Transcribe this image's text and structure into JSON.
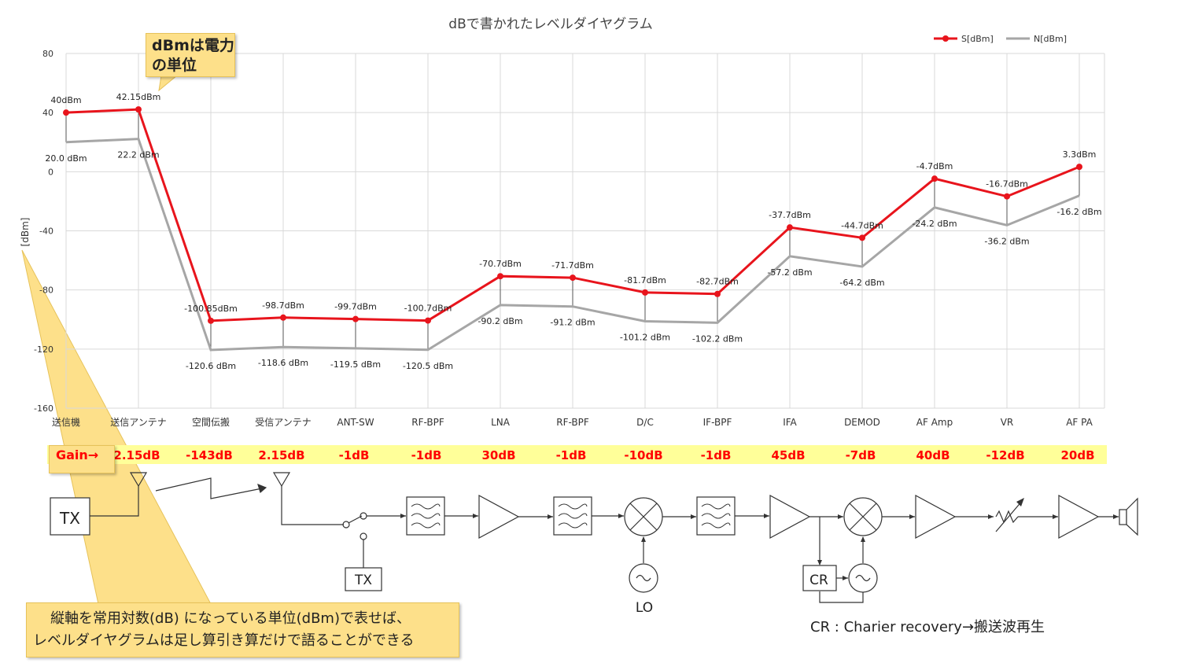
{
  "chart_data": {
    "type": "line",
    "title": "dBで書かれたレベルダイヤグラム",
    "ylabel": "[dBm]",
    "ylim": [
      -160,
      80
    ],
    "yticks": [
      80,
      40,
      0,
      -40,
      -80,
      -120,
      -160
    ],
    "categories": [
      "送信機",
      "送信アンテナ",
      "空間伝搬",
      "受信アンテナ",
      "ANT-SW",
      "RF-BPF",
      "LNA",
      "RF-BPF",
      "D/C",
      "IF-BPF",
      "IFA",
      "DEMOD",
      "AF Amp",
      "VR",
      "AF PA"
    ],
    "legend_position": "top-right",
    "series": [
      {
        "name": "S[dBm]",
        "color": "#e8141c",
        "values": [
          40,
          42.15,
          -100.85,
          -98.7,
          -99.7,
          -100.7,
          -70.7,
          -71.7,
          -81.7,
          -82.7,
          -37.7,
          -44.7,
          -4.7,
          -16.7,
          3.3
        ],
        "labels": [
          "40dBm",
          "42.15dBm",
          "-100.85dBm",
          "-98.7dBm",
          "-99.7dBm",
          "-100.7dBm",
          "-70.7dBm",
          "-71.7dBm",
          "-81.7dBm",
          "-82.7dBm",
          "-37.7dBm",
          "-44.7dBm",
          "-4.7dBm",
          "-16.7dBm",
          "3.3dBm"
        ]
      },
      {
        "name": "N[dBm]",
        "color": "#a6a6a6",
        "values": [
          20.0,
          22.2,
          -120.6,
          -118.6,
          -119.5,
          -120.5,
          -90.2,
          -91.2,
          -101.2,
          -102.2,
          -57.2,
          -64.2,
          -24.2,
          -36.2,
          -16.2
        ],
        "labels": [
          "20.0 dBm",
          "22.2 dBm",
          "-120.6 dBm",
          "-118.6 dBm",
          "-119.5 dBm",
          "-120.5 dBm",
          "-90.2 dBm",
          "-91.2 dBm",
          "-101.2 dBm",
          "-102.2 dBm",
          "-57.2 dBm",
          "-64.2 dBm",
          "-24.2 dBm",
          "-36.2 dBm",
          "-16.2 dBm"
        ]
      }
    ]
  },
  "gain": {
    "label": "Gain→",
    "values": [
      "2.15dB",
      "-143dB",
      "2.15dB",
      "-1dB",
      "-1dB",
      "30dB",
      "-1dB",
      "-10dB",
      "-1dB",
      "45dB",
      "-7dB",
      "40dB",
      "-12dB",
      "20dB"
    ],
    "text_color": "#ff0000",
    "band_color": "#ffff99"
  },
  "callouts": {
    "dbm_note_lines": [
      "dBmは電力",
      "の単位"
    ],
    "bottom_note_lines": [
      "縦軸を常用対数(dB) になっている単位(dBm)で表せば、",
      "レベルダイヤグラムは足し算引き算だけで語ることができる"
    ],
    "color": "#fde08a"
  },
  "block_diagram": {
    "tx_main": "TX",
    "tx_switch": "TX",
    "lo": "LO",
    "cr": "CR",
    "cr_note": "CR : Charier recovery→搬送波再生"
  }
}
